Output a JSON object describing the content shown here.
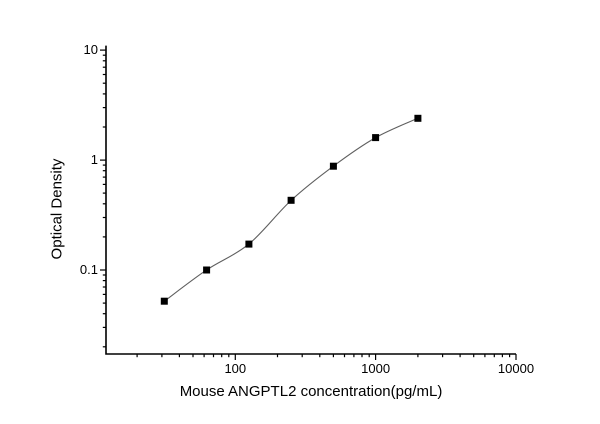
{
  "figure": {
    "background_color": "#ffffff",
    "axis_color": "#000000",
    "text_color": "#000000"
  },
  "chart_data": {
    "type": "line",
    "title": "",
    "xlabel": "Mouse ANGPTL2 concentration(pg/mL)",
    "ylabel": "Optical Density",
    "x_scale": "log",
    "y_scale": "log",
    "xlim": [
      12,
      10000
    ],
    "ylim": [
      0.0172,
      11
    ],
    "grid": false,
    "legend": "none",
    "x": [
      31.25,
      62.5,
      125,
      250,
      500,
      1000,
      2000
    ],
    "y": [
      0.052,
      0.1,
      0.172,
      0.43,
      0.88,
      1.6,
      2.4
    ],
    "x_major_ticks": [
      {
        "value": 100,
        "label": "100"
      },
      {
        "value": 1000,
        "label": "1000"
      },
      {
        "value": 10000,
        "label": "10000"
      }
    ],
    "y_major_ticks": [
      {
        "value": 0.1,
        "label": "0.1"
      },
      {
        "value": 1,
        "label": "1"
      },
      {
        "value": 10,
        "label": "10"
      }
    ],
    "marker": {
      "shape": "square",
      "color": "#000000",
      "size": 7
    },
    "line_color": "#5f5f5f"
  }
}
